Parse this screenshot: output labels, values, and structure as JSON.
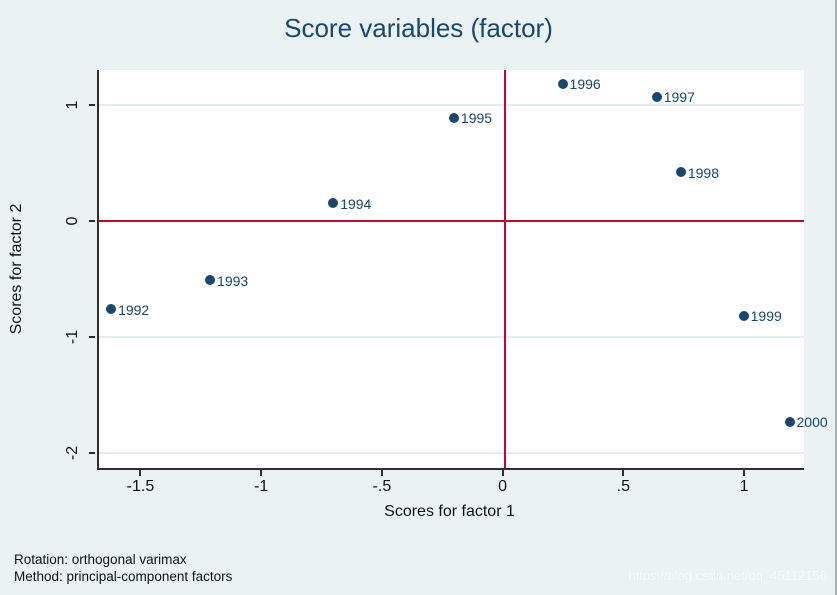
{
  "title": "Score variables (factor)",
  "footnotes": {
    "line1": "Rotation: orthogonal varimax",
    "line2": "Method: principal-component factors"
  },
  "watermark": "https://blog.csdn.net/qq_45112156",
  "colors": {
    "background": "#eaf2f3",
    "plot_background": "#ffffff",
    "marker": "#1a476f",
    "title_text": "#1a476f",
    "refline": "#c10534",
    "gridline": "#e3edf0",
    "axis": "#2f2f2f",
    "tick_text": "#111111"
  },
  "chart_data": {
    "type": "scatter",
    "title": "Score variables (factor)",
    "xlabel": "Scores for factor 1",
    "ylabel": "Scores for factor 2",
    "xlim": [
      -1.68,
      1.24
    ],
    "ylim": [
      -2.13,
      1.3
    ],
    "grid": true,
    "legend_position": "none",
    "x_ticks": [
      {
        "value": -1.5,
        "label": "-1.5"
      },
      {
        "value": -1.0,
        "label": "-1"
      },
      {
        "value": -0.5,
        "label": "-.5"
      },
      {
        "value": 0.0,
        "label": "0"
      },
      {
        "value": 0.5,
        "label": ".5"
      },
      {
        "value": 1.0,
        "label": "1"
      }
    ],
    "y_ticks": [
      {
        "value": 1.0,
        "label": "1"
      },
      {
        "value": 0.0,
        "label": "0"
      },
      {
        "value": -1.0,
        "label": "-1"
      },
      {
        "value": -2.0,
        "label": "-2"
      }
    ],
    "refline_x": 0,
    "refline_y": 0,
    "points": [
      {
        "label": "1992",
        "x": -1.63,
        "y": -0.76
      },
      {
        "label": "1993",
        "x": -1.22,
        "y": -0.51
      },
      {
        "label": "1994",
        "x": -0.71,
        "y": 0.15
      },
      {
        "label": "1995",
        "x": -0.21,
        "y": 0.89
      },
      {
        "label": "1996",
        "x": 0.24,
        "y": 1.18
      },
      {
        "label": "1997",
        "x": 0.63,
        "y": 1.07
      },
      {
        "label": "1998",
        "x": 0.73,
        "y": 0.42
      },
      {
        "label": "1999",
        "x": 0.99,
        "y": -0.82
      },
      {
        "label": "2000",
        "x": 1.18,
        "y": -1.73
      }
    ]
  }
}
